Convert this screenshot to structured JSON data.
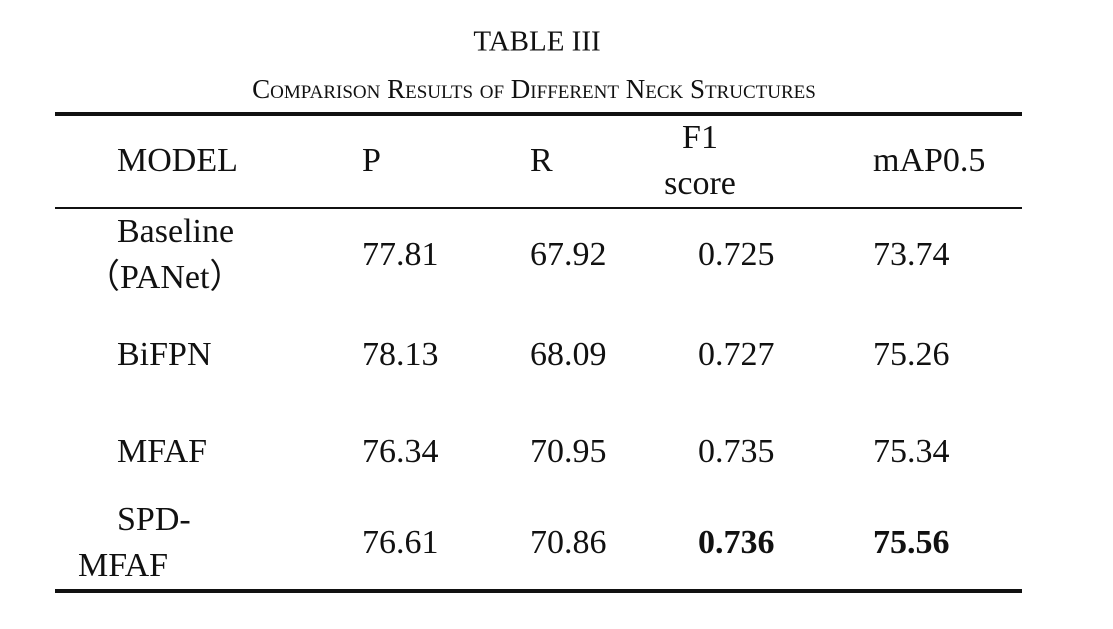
{
  "title": "TABLE III",
  "subtitle": "Comparison Results of Different Neck Structures",
  "table": {
    "header": [
      [
        "MODEL"
      ],
      [
        "P"
      ],
      [
        "R"
      ],
      [
        "F1",
        "score"
      ],
      [
        "mAP0.5"
      ]
    ],
    "rows": [
      [
        [
          "Baseline",
          "（PANet）"
        ],
        [
          "77.81"
        ],
        [
          "67.92"
        ],
        [
          "0.725"
        ],
        [
          "73.74"
        ]
      ],
      [
        [
          "BiFPN"
        ],
        [
          "78.13"
        ],
        [
          "68.09"
        ],
        [
          "0.727"
        ],
        [
          "75.26"
        ]
      ],
      [
        [
          "MFAF"
        ],
        [
          "76.34"
        ],
        [
          "70.95"
        ],
        [
          "0.735"
        ],
        [
          "75.34"
        ]
      ],
      [
        [
          "SPD-",
          "MFAF"
        ],
        [
          "76.61"
        ],
        [
          "70.86"
        ],
        [
          "0.736"
        ],
        [
          "75.56"
        ]
      ]
    ],
    "bold": [
      [
        3,
        3
      ],
      [
        3,
        4
      ]
    ]
  }
}
